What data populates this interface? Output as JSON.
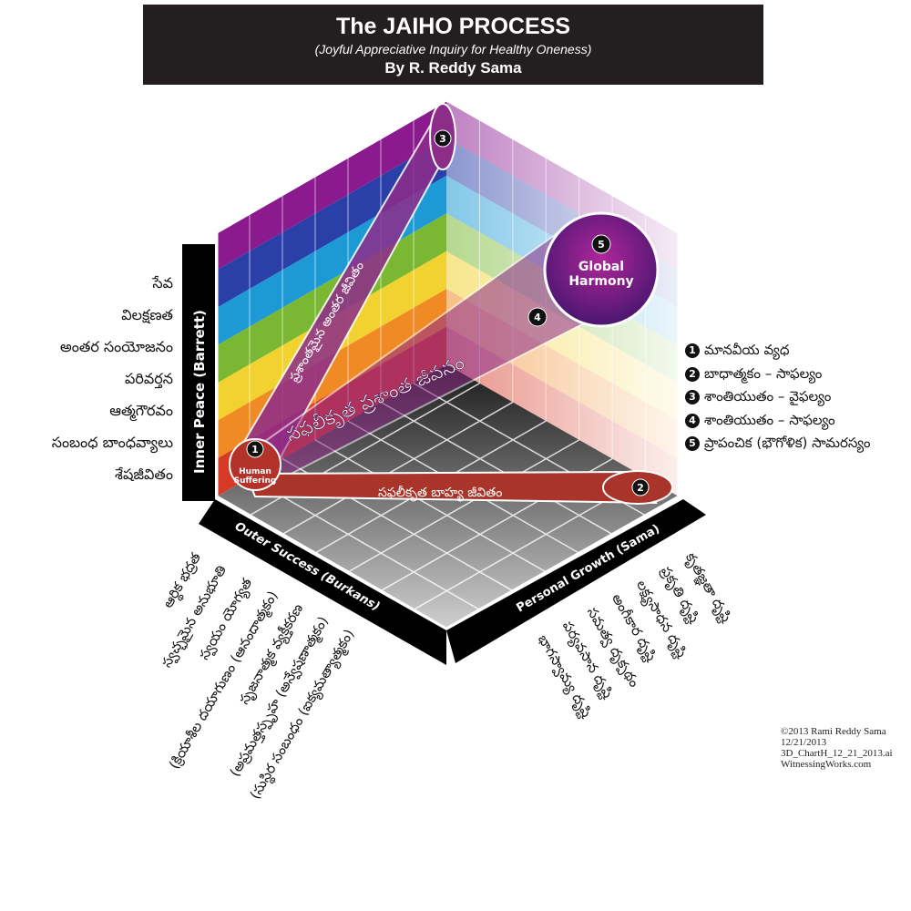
{
  "header": {
    "title": "The JAIHO PROCESS",
    "subtitle": "(Joyful Appreciative Inquiry for Healthy Oneness)",
    "byline": "By R. Reddy Sama"
  },
  "axes": {
    "inner_peace": "Inner Peace (Barrett)",
    "outer_success": "Outer Success (Burkans)",
    "personal_growth": "Personal Growth (Sama)"
  },
  "inner_peace_levels": [
    "సేవ",
    "విలక్షణత",
    "అంతర సంయోజనం",
    "పరివర్తన",
    "ఆత్మగౌరవం",
    "సంబంధ బాంధవ్యాలు",
    "శేషజీవితం"
  ],
  "outer_success_levels": [
    "ఆర్థిక భద్రత",
    "స్వచ్ఛమైన అనుభూతి",
    "స్వయం యోగ్యత",
    "(క్రియాశీల దయాగుణం (ఆనందాత్మకం)",
    "సృజనాత్మక వ్యక్తీకరణ",
    "(అప్రమత్తస్పృహ (అన్వేషణాత్మకం)",
    "(సుస్థిర సంబంధం (ఐక్యమత్యాత్మకం)"
  ],
  "personal_growth_levels": [
    "కృతజ్ఞతా దృష్టి",
    "ప్రకృతి దృష్టి",
    "లక్ష్యసాధన దృష్టి",
    "అంగీకార దృష్టి",
    "సమత్వ దృక్పథం",
    "పర్యవసాన దృష్టి",
    "భాగస్వామ్య దృష్టి"
  ],
  "paths": {
    "inner": "ప్రశాంతమైన అంతర జీవితం",
    "diagonal": "సఫలీకృత ప్రశాంత జీవనం",
    "outer": "సఫలీకృత బాహ్య జీవితం"
  },
  "points": {
    "p1": {
      "num": "1",
      "label": "Human Suffering"
    },
    "p2": {
      "num": "2"
    },
    "p3": {
      "num": "3"
    },
    "p4": {
      "num": "4"
    },
    "p5": {
      "num": "5",
      "label": "Global Harmony"
    }
  },
  "legend": [
    {
      "num": "1",
      "text": "మానవీయ వ్యధ"
    },
    {
      "num": "2",
      "text": "బాధాత్మకం – సాఫల్యం"
    },
    {
      "num": "3",
      "text": "శాంతియుతం – వైఫల్యం"
    },
    {
      "num": "4",
      "text": "శాంతియుతం – సాఫల్యం"
    },
    {
      "num": "5",
      "text": "ప్రాపంచిక (భౌగోళిక) సామరస్యం"
    }
  ],
  "copyright": [
    "©2013 Rami Reddy Sama",
    "12/21/2013",
    "3D_ChartH_12_21_2013.ai",
    "WitnessingWorks.com"
  ],
  "colors": {
    "bands": [
      "#8b1a8f",
      "#2b3fa8",
      "#1d9ad6",
      "#7ab833",
      "#f2d230",
      "#f08a24",
      "#d63a26"
    ],
    "path": "#a8342a",
    "diag": "#8e2c8a"
  }
}
